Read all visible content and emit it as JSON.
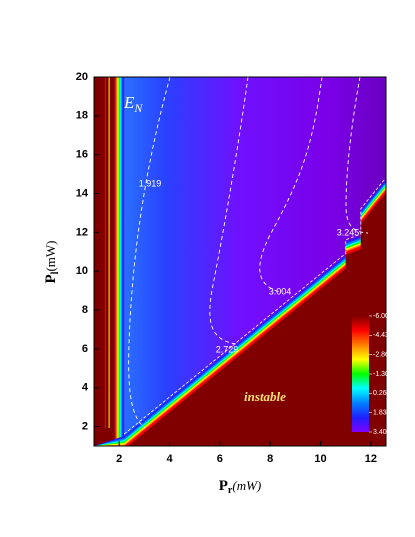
{
  "chart_data": {
    "type": "contour",
    "x_label": {
      "text": "P",
      "sub": "r",
      "unit": "(mW)"
    },
    "y_label": {
      "text": "P",
      "sub": "l",
      "unit": "(mW)"
    },
    "xlim": [
      1,
      12.6
    ],
    "ylim": [
      1,
      20
    ],
    "xticks": [
      2,
      4,
      6,
      8,
      10,
      12
    ],
    "yticks": [
      2,
      4,
      6,
      8,
      10,
      12,
      14,
      16,
      18,
      20
    ],
    "contour_levels": [
      1.919,
      2.729,
      3.004,
      3.245
    ],
    "contour_color": "#ffffff",
    "annotation_symbol": {
      "text": "E",
      "sub": "N"
    },
    "region_label": "instable",
    "colormap": [
      "#800000",
      "#ff0000",
      "#ff8000",
      "#ffff00",
      "#00ff00",
      "#00ffff",
      "#0080ff",
      "#2020ff",
      "#8000ff"
    ],
    "colorbar_ticks": [
      {
        "value": -6,
        "label": "-6.000"
      },
      -4.433,
      -2.867,
      {
        "value": -1.3,
        "label": "-1.300"
      },
      0.2667,
      1.833,
      {
        "value": 3.4,
        "label": "3.400"
      }
    ]
  }
}
